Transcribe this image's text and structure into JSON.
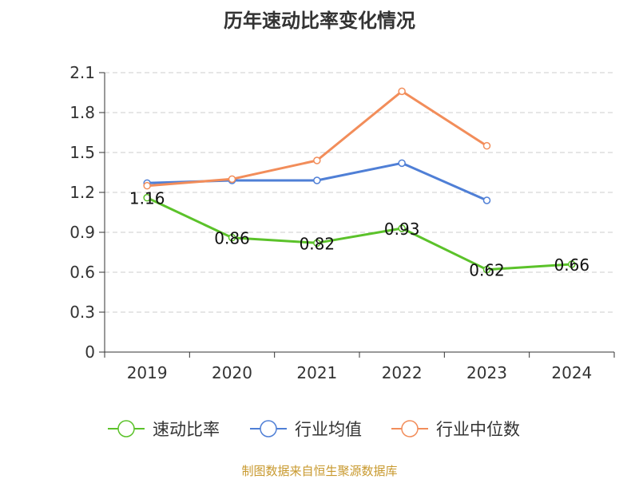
{
  "title": "历年速动比率变化情况",
  "source_note": "制图数据来自恒生聚源数据库",
  "chart_data": {
    "type": "line",
    "title": "历年速动比率变化情况",
    "categories": [
      "2019",
      "2020",
      "2021",
      "2022",
      "2023",
      "2024"
    ],
    "y_ticks": [
      "0",
      "0.3",
      "0.6",
      "0.9",
      "1.2",
      "1.5",
      "1.8",
      "2.1"
    ],
    "ylim": [
      0,
      2.1
    ],
    "grid": true,
    "legend_position": "bottom",
    "series": [
      {
        "name": "速动比率",
        "color": "#5bc22a",
        "values": [
          1.16,
          0.86,
          0.82,
          0.93,
          0.62,
          0.66
        ],
        "data_labels": [
          "1.16",
          "0.86",
          "0.82",
          "0.93",
          "0.62",
          "0.66"
        ]
      },
      {
        "name": "行业均值",
        "color": "#4f7fd6",
        "values": [
          1.27,
          1.29,
          1.29,
          1.42,
          1.14,
          null
        ]
      },
      {
        "name": "行业中位数",
        "color": "#f28d5a",
        "values": [
          1.25,
          1.3,
          1.44,
          1.96,
          1.55,
          null
        ]
      }
    ]
  }
}
